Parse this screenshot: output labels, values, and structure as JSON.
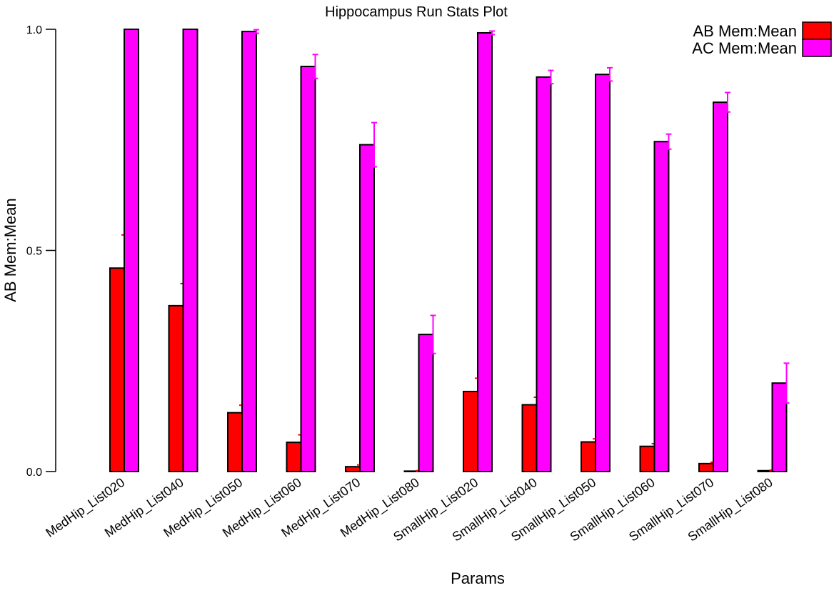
{
  "chart_data": {
    "type": "bar",
    "title": "Hippocampus Run Stats Plot",
    "xlabel": "Params",
    "ylabel": "AB Mem:Mean",
    "ylim": [
      0,
      1
    ],
    "yticks": [
      "0.0",
      "0.5",
      "1.0"
    ],
    "ytick_values": [
      0,
      0.5,
      1.0
    ],
    "legend_position": "top-right",
    "categories": [
      "MedHip_List020",
      "MedHip_List040",
      "MedHip_List050",
      "MedHip_List060",
      "MedHip_List070",
      "MedHip_List080",
      "SmallHip_List020",
      "SmallHip_List040",
      "SmallHip_List050",
      "SmallHip_List060",
      "SmallHip_List070",
      "SmallHip_List080"
    ],
    "series": [
      {
        "name": "AB Mem:Mean",
        "color": "#ff0000",
        "values": [
          0.46,
          0.375,
          0.133,
          0.066,
          0.011,
          0.001,
          0.181,
          0.151,
          0.067,
          0.057,
          0.018,
          0.002
        ],
        "errors": [
          0.075,
          0.05,
          0.017,
          0.017,
          0.004,
          0.001,
          0.03,
          0.017,
          0.007,
          0.006,
          0.003,
          0.001
        ]
      },
      {
        "name": "AC Mem:Mean",
        "color": "#ff00ff",
        "values": [
          1.0,
          1.0,
          0.995,
          0.916,
          0.739,
          0.31,
          0.992,
          0.892,
          0.898,
          0.746,
          0.835,
          0.2
        ],
        "errors": [
          0.0,
          0.0,
          0.004,
          0.027,
          0.05,
          0.043,
          0.004,
          0.015,
          0.015,
          0.017,
          0.022,
          0.045
        ]
      }
    ]
  }
}
